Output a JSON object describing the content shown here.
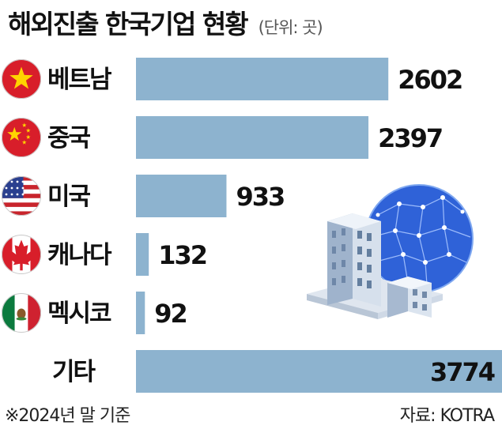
{
  "header": {
    "title": "해외진출 한국기업 현황",
    "unit": "(단위: 곳)"
  },
  "footer": {
    "note": "※2024년 말 기준",
    "source": "자료: KOTRA"
  },
  "colors": {
    "bar": "#8db3cf",
    "text": "#111111"
  },
  "flags": [
    "vietnam-flag-icon",
    "china-flag-icon",
    "usa-flag-icon",
    "canada-flag-icon",
    "mexico-flag-icon",
    ""
  ],
  "chart_data": {
    "type": "bar",
    "orientation": "horizontal",
    "title": "해외진출 한국기업 현황",
    "unit": "(단위: 곳)",
    "categories": [
      "베트남",
      "중국",
      "미국",
      "캐나다",
      "멕시코",
      "기타"
    ],
    "values": [
      2602,
      2397,
      933,
      132,
      92,
      3774
    ],
    "xlim": [
      0,
      3774
    ],
    "grid": false,
    "legend": "none"
  }
}
